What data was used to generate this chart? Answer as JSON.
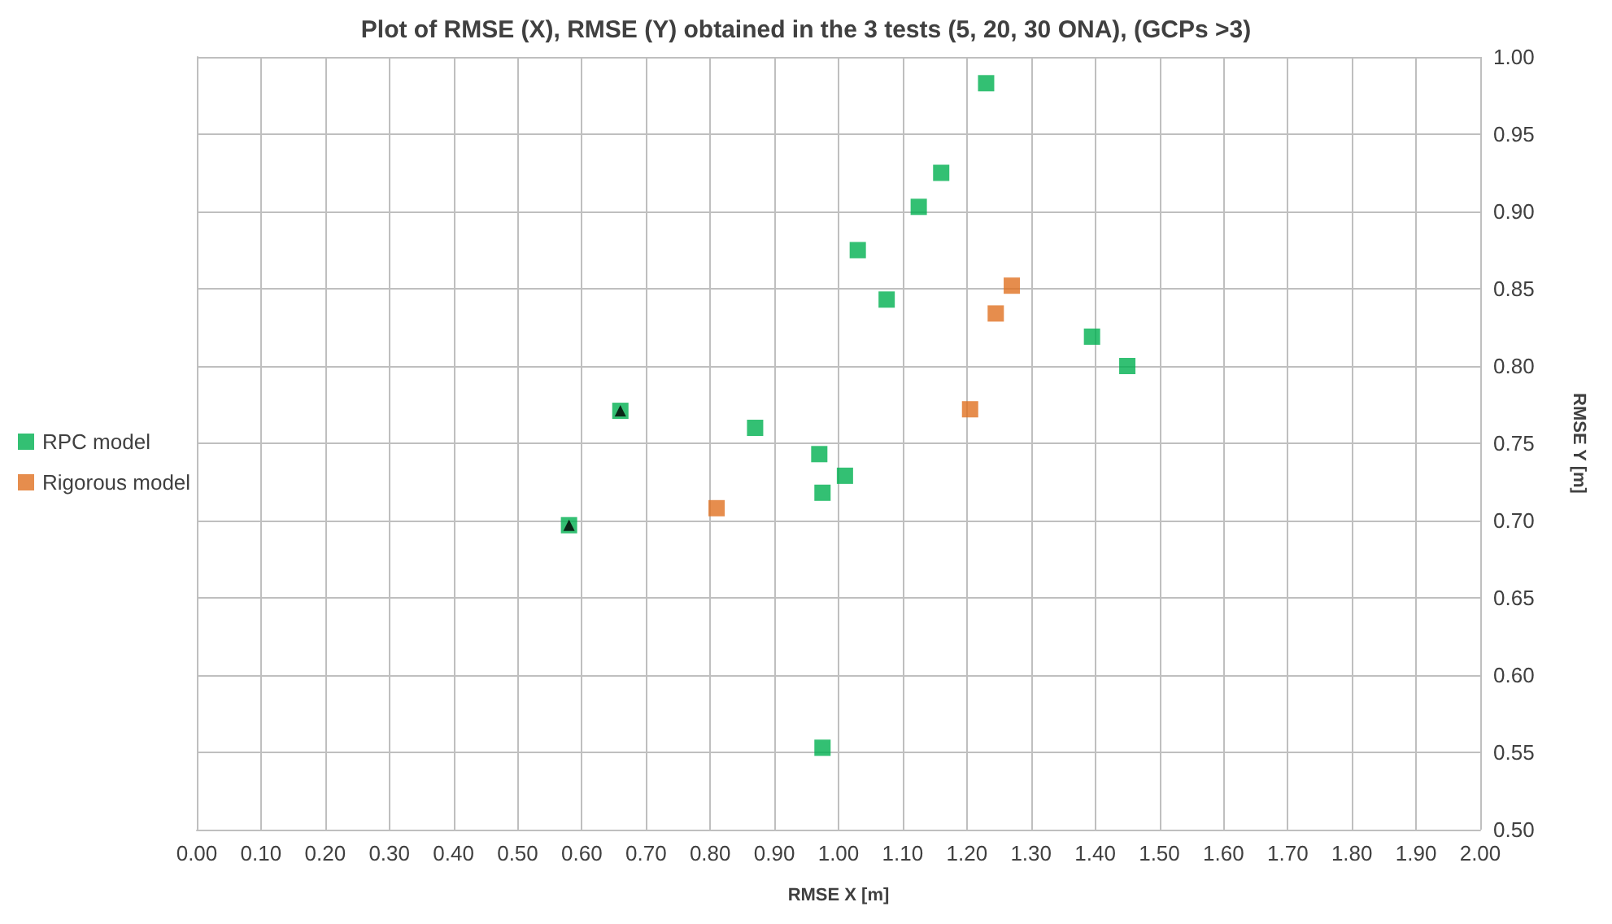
{
  "chart_data": {
    "type": "scatter",
    "title": "Plot of RMSE (X), RMSE (Y) obtained in the 3 tests (5, 20, 30 ONA), (GCPs >3)",
    "xlabel": "RMSE X [m]",
    "ylabel": "RMSE Y [m]",
    "xlim": [
      0,
      2
    ],
    "xticks": [
      {
        "value": 0,
        "label": "0.00"
      },
      {
        "value": 0.1,
        "label": "0.10"
      },
      {
        "value": 0.2,
        "label": "0.20"
      },
      {
        "value": 0.3,
        "label": "0.30"
      },
      {
        "value": 0.4,
        "label": "0.40"
      },
      {
        "value": 0.5,
        "label": "0.50"
      },
      {
        "value": 0.6,
        "label": "0.60"
      },
      {
        "value": 0.7,
        "label": "0.70"
      },
      {
        "value": 0.8,
        "label": "0.80"
      },
      {
        "value": 0.9,
        "label": "0.90"
      },
      {
        "value": 1,
        "label": "1.00"
      },
      {
        "value": 1.1,
        "label": "1.10"
      },
      {
        "value": 1.2,
        "label": "1.20"
      },
      {
        "value": 1.3,
        "label": "1.30"
      },
      {
        "value": 1.4,
        "label": "1.40"
      },
      {
        "value": 1.5,
        "label": "1.50"
      },
      {
        "value": 1.6,
        "label": "1.60"
      },
      {
        "value": 1.7,
        "label": "1.70"
      },
      {
        "value": 1.8,
        "label": "1.80"
      },
      {
        "value": 1.9,
        "label": "1.90"
      },
      {
        "value": 2,
        "label": "2.00"
      }
    ],
    "ylim": [
      0.5,
      1
    ],
    "yticks": [
      {
        "value": 0.5,
        "label": "0.50"
      },
      {
        "value": 0.55,
        "label": "0.55"
      },
      {
        "value": 0.6,
        "label": "0.60"
      },
      {
        "value": 0.65,
        "label": "0.65"
      },
      {
        "value": 0.7,
        "label": "0.70"
      },
      {
        "value": 0.75,
        "label": "0.75"
      },
      {
        "value": 0.8,
        "label": "0.80"
      },
      {
        "value": 0.85,
        "label": "0.85"
      },
      {
        "value": 0.9,
        "label": "0.90"
      },
      {
        "value": 0.95,
        "label": "0.95"
      },
      {
        "value": 1,
        "label": "1.00"
      }
    ],
    "grid": true,
    "legend": "left",
    "marker": "square",
    "series": [
      {
        "name": "RPC model",
        "color": "#00b050",
        "x": [
          0.58,
          0.66,
          0.87,
          0.97,
          0.975,
          1.01,
          0.975,
          1.03,
          1.075,
          1.125,
          1.16,
          1.23,
          1.395,
          1.45
        ],
        "values": [
          0.697,
          0.771,
          0.76,
          0.743,
          0.718,
          0.729,
          0.553,
          0.875,
          0.843,
          0.903,
          0.925,
          0.983,
          0.819,
          0.8
        ]
      },
      {
        "name": "Rigorous model",
        "color": "#e07020",
        "x": [
          0.81,
          1.205,
          1.245,
          1.27
        ],
        "values": [
          0.708,
          0.772,
          0.834,
          0.852
        ]
      },
      {
        "color": "#000000",
        "marker": "triangle",
        "x": [
          0.58,
          0.66
        ],
        "values": [
          0.697,
          0.771
        ]
      }
    ]
  }
}
